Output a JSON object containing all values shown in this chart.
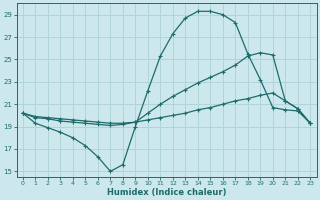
{
  "xlabel": "Humidex (Indice chaleur)",
  "bg_color": "#cce8ec",
  "grid_color": "#b0d4d8",
  "line_color": "#1e6b6b",
  "xlim": [
    -0.5,
    23.5
  ],
  "ylim": [
    14.5,
    30.0
  ],
  "xticks": [
    0,
    1,
    2,
    3,
    4,
    5,
    6,
    7,
    8,
    9,
    10,
    11,
    12,
    13,
    14,
    15,
    16,
    17,
    18,
    19,
    20,
    21,
    22,
    23
  ],
  "yticks": [
    15,
    17,
    19,
    21,
    23,
    25,
    27,
    29
  ],
  "line1_x": [
    0,
    1,
    2,
    3,
    4,
    5,
    6,
    7,
    8,
    9,
    10,
    11,
    12,
    13,
    14,
    15,
    16,
    17,
    18,
    19,
    20,
    21,
    22,
    23
  ],
  "line1_y": [
    20.2,
    19.3,
    18.9,
    18.5,
    18.0,
    17.3,
    16.3,
    15.0,
    15.6,
    19.0,
    22.2,
    25.3,
    27.3,
    28.7,
    29.3,
    29.3,
    29.0,
    28.3,
    25.5,
    23.2,
    20.7,
    20.5,
    20.4,
    19.3
  ],
  "line2_x": [
    0,
    1,
    2,
    3,
    4,
    5,
    6,
    7,
    8,
    9,
    10,
    11,
    12,
    13,
    14,
    15,
    16,
    17,
    18,
    19,
    20,
    21,
    22,
    23
  ],
  "line2_y": [
    20.2,
    19.8,
    19.7,
    19.5,
    19.4,
    19.3,
    19.2,
    19.1,
    19.2,
    19.4,
    20.2,
    21.0,
    21.7,
    22.3,
    22.9,
    23.4,
    23.9,
    24.5,
    25.3,
    25.6,
    25.4,
    21.3,
    20.6,
    19.3
  ],
  "line3_x": [
    0,
    1,
    2,
    3,
    4,
    5,
    6,
    7,
    8,
    9,
    10,
    11,
    12,
    13,
    14,
    15,
    16,
    17,
    18,
    19,
    20,
    21,
    22,
    23
  ],
  "line3_y": [
    20.2,
    19.9,
    19.8,
    19.7,
    19.6,
    19.5,
    19.4,
    19.3,
    19.3,
    19.4,
    19.6,
    19.8,
    20.0,
    20.2,
    20.5,
    20.7,
    21.0,
    21.3,
    21.5,
    21.8,
    22.0,
    21.3,
    20.6,
    19.3
  ]
}
